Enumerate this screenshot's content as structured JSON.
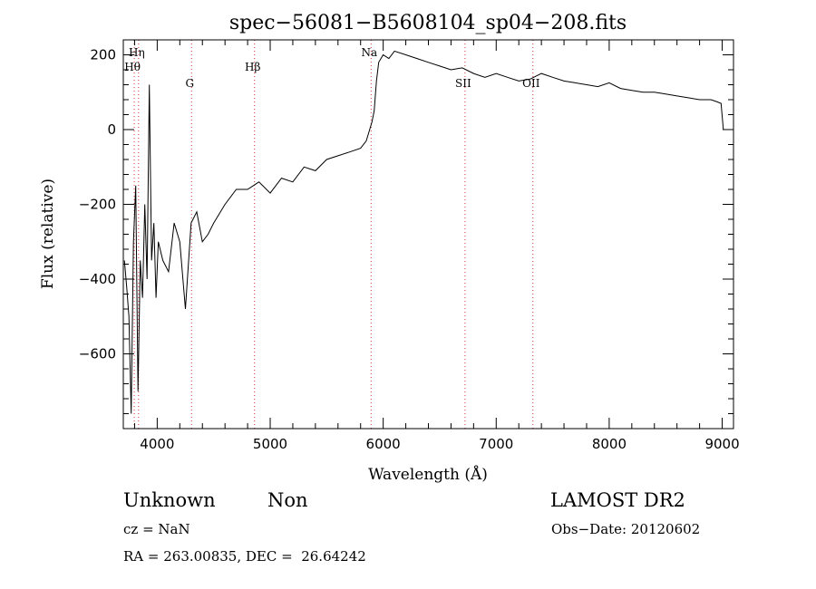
{
  "chart_data": {
    "type": "line",
    "title": "spec−56081−B5608104_sp04−208.fits",
    "xlabel": "Wavelength (Å)",
    "ylabel": "Flux (relative)",
    "xlim": [
      3700,
      9100
    ],
    "ylim": [
      -800,
      240
    ],
    "x_ticks": [
      4000,
      5000,
      6000,
      7000,
      8000,
      9000
    ],
    "y_ticks": [
      -600,
      -400,
      -200,
      0,
      200
    ],
    "grid": false,
    "line_color": "#000000",
    "marker_color": "#cc3333",
    "lines": [
      {
        "label": "Hη",
        "wavelength": 3835
      },
      {
        "label": "Hθ",
        "wavelength": 3797
      },
      {
        "label": "G",
        "wavelength": 4304
      },
      {
        "label": "Hβ",
        "wavelength": 4861
      },
      {
        "label": "Na",
        "wavelength": 5893
      },
      {
        "label": "SII",
        "wavelength": 6724
      },
      {
        "label": "OII",
        "wavelength": 7325
      }
    ],
    "series": [
      {
        "x": [
          3710,
          3730,
          3750,
          3770,
          3790,
          3810,
          3830,
          3850,
          3870,
          3890,
          3910,
          3930,
          3950,
          3970,
          3990,
          4010,
          4050,
          4100,
          4150,
          4200,
          4250,
          4300,
          4350,
          4400,
          4450,
          4500,
          4600,
          4700,
          4800,
          4900,
          5000,
          5100,
          5200,
          5300,
          5400,
          5500,
          5600,
          5700,
          5800,
          5850,
          5900,
          5920,
          5940,
          5960,
          6000,
          6050,
          6100,
          6200,
          6300,
          6400,
          6500,
          6600,
          6700,
          6800,
          6900,
          7000,
          7100,
          7200,
          7300,
          7400,
          7500,
          7600,
          7700,
          7800,
          7900,
          8000,
          8100,
          8200,
          8300,
          8400,
          8500,
          8600,
          8700,
          8800,
          8900,
          8950,
          8990,
          9010
        ],
        "y": [
          -350,
          -420,
          -500,
          -760,
          -300,
          -150,
          -700,
          -350,
          -450,
          -200,
          -400,
          120,
          -350,
          -250,
          -450,
          -300,
          -350,
          -380,
          -250,
          -300,
          -480,
          -250,
          -220,
          -300,
          -280,
          -250,
          -200,
          -160,
          -160,
          -140,
          -170,
          -130,
          -140,
          -100,
          -110,
          -80,
          -70,
          -60,
          -50,
          -30,
          20,
          50,
          130,
          180,
          200,
          190,
          210,
          200,
          190,
          180,
          170,
          160,
          165,
          150,
          140,
          150,
          140,
          130,
          135,
          150,
          140,
          130,
          125,
          120,
          115,
          125,
          110,
          105,
          100,
          100,
          95,
          90,
          85,
          80,
          80,
          75,
          70,
          0
        ]
      }
    ]
  },
  "footer": {
    "class_label": "Unknown",
    "subclass_label": "Non",
    "survey": "LAMOST DR2",
    "cz": "cz = NaN",
    "obs_date": "Obs−Date: 20120602",
    "coords": "RA = 263.00835, DEC =  26.64242"
  }
}
